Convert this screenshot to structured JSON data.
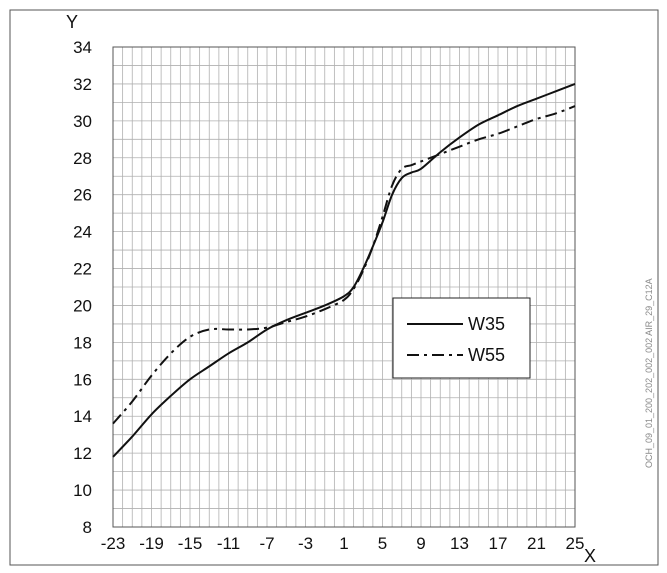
{
  "chart_data": {
    "type": "line",
    "xlabel": "X",
    "ylabel": "Y",
    "xlim": [
      -23,
      25
    ],
    "ylim": [
      8,
      34
    ],
    "x_ticks": [
      -23,
      -19,
      -15,
      -11,
      -7,
      -3,
      1,
      5,
      9,
      13,
      17,
      21,
      25
    ],
    "y_ticks": [
      8,
      10,
      12,
      14,
      16,
      18,
      20,
      22,
      24,
      26,
      28,
      30,
      32,
      34
    ],
    "grid": true,
    "legend_position": "center-right",
    "side_code": "OCH_09_01_200_202_002_002 AIR_29_C12A",
    "series": [
      {
        "name": "W35",
        "style": "solid",
        "points": [
          [
            -23,
            11.8
          ],
          [
            -21,
            12.9
          ],
          [
            -19,
            14.1
          ],
          [
            -17,
            15.1
          ],
          [
            -15,
            16.0
          ],
          [
            -13,
            16.7
          ],
          [
            -11,
            17.4
          ],
          [
            -9,
            18.0
          ],
          [
            -7,
            18.7
          ],
          [
            -5,
            19.2
          ],
          [
            -3,
            19.6
          ],
          [
            -1,
            20.0
          ],
          [
            1,
            20.5
          ],
          [
            2,
            21.0
          ],
          [
            3,
            22.0
          ],
          [
            4,
            23.2
          ],
          [
            5,
            24.5
          ],
          [
            6,
            26.0
          ],
          [
            7,
            26.9
          ],
          [
            8,
            27.2
          ],
          [
            9,
            27.4
          ],
          [
            11,
            28.3
          ],
          [
            13,
            29.1
          ],
          [
            15,
            29.8
          ],
          [
            17,
            30.3
          ],
          [
            19,
            30.8
          ],
          [
            21,
            31.2
          ],
          [
            23,
            31.6
          ],
          [
            25,
            32.0
          ]
        ]
      },
      {
        "name": "W55",
        "style": "dash-dot",
        "points": [
          [
            -23,
            13.6
          ],
          [
            -21,
            14.8
          ],
          [
            -19,
            16.2
          ],
          [
            -17,
            17.4
          ],
          [
            -15,
            18.3
          ],
          [
            -13,
            18.7
          ],
          [
            -11,
            18.7
          ],
          [
            -9,
            18.7
          ],
          [
            -7,
            18.8
          ],
          [
            -5,
            19.1
          ],
          [
            -3,
            19.4
          ],
          [
            -1,
            19.8
          ],
          [
            1,
            20.3
          ],
          [
            2,
            20.9
          ],
          [
            3,
            21.9
          ],
          [
            4,
            23.2
          ],
          [
            5,
            24.8
          ],
          [
            6,
            26.5
          ],
          [
            7,
            27.4
          ],
          [
            8,
            27.6
          ],
          [
            9,
            27.8
          ],
          [
            11,
            28.2
          ],
          [
            13,
            28.6
          ],
          [
            15,
            29.0
          ],
          [
            17,
            29.3
          ],
          [
            19,
            29.7
          ],
          [
            21,
            30.1
          ],
          [
            23,
            30.4
          ],
          [
            25,
            30.8
          ]
        ]
      }
    ]
  }
}
